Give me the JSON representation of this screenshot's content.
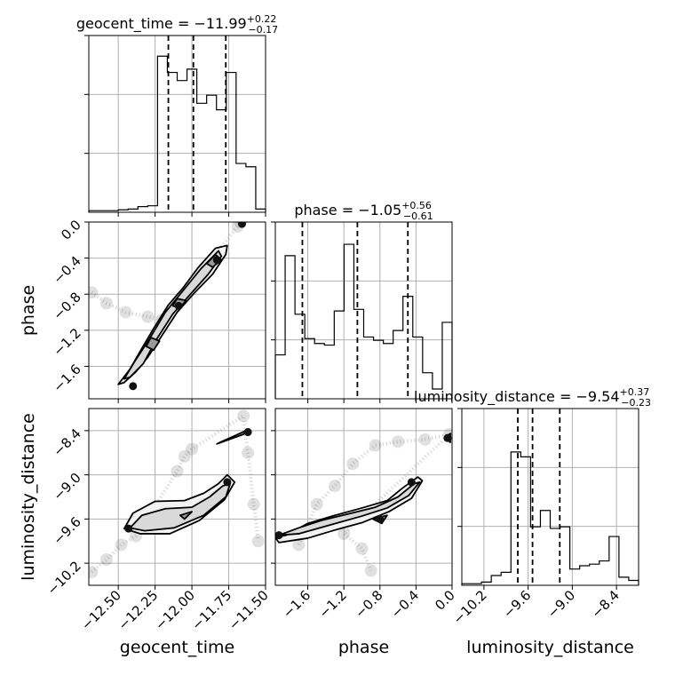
{
  "chart_data": {
    "type": "corner",
    "parameters": [
      {
        "name": "geocent_time",
        "xlabel": "geocent_time",
        "ylabel": "",
        "title": {
          "prefix": "geocent_time = ",
          "median": "−11.99",
          "plus": "+0.22",
          "minus": "−0.17"
        },
        "range": [
          -12.7,
          -11.5
        ],
        "ticks": [
          -12.5,
          -12.25,
          -12.0,
          -11.75,
          -11.5
        ],
        "tick_labels": [
          "−12.50",
          "−12.25",
          "−12.00",
          "−11.75",
          "−11.50"
        ],
        "quantiles": [
          -12.16,
          -11.99,
          -11.77
        ],
        "hist_max": 1.0,
        "hist": [
          0.01,
          0.01,
          0.01,
          0.015,
          0.02,
          0.035,
          0.04,
          0.96,
          0.86,
          0.81,
          0.88,
          0.67,
          0.72,
          0.63,
          0.86,
          0.3,
          0.28,
          0.02
        ]
      },
      {
        "name": "phase",
        "xlabel": "phase",
        "ylabel": "phase",
        "title": {
          "prefix": "phase = ",
          "median": "−1.05",
          "plus": "+0.56",
          "minus": "−0.61"
        },
        "range": [
          -1.96,
          0.0
        ],
        "ticks": [
          -1.6,
          -1.2,
          -0.8,
          -0.4,
          0.0
        ],
        "tick_labels": [
          "−1.6",
          "−1.2",
          "−0.8",
          "−0.4",
          "0.0"
        ],
        "quantiles": [
          -1.66,
          -1.05,
          -0.49
        ],
        "hist_max": 1.0,
        "hist": [
          0.27,
          0.88,
          0.52,
          0.37,
          0.34,
          0.33,
          0.54,
          0.95,
          0.55,
          0.38,
          0.36,
          0.34,
          0.42,
          0.63,
          0.38,
          0.16,
          0.06,
          0.47
        ]
      },
      {
        "name": "luminosity_distance",
        "xlabel": "luminosity_distance",
        "ylabel": "luminosity_distance",
        "title": {
          "prefix": "luminosity_distance = ",
          "median": "−9.54",
          "plus": "+0.37",
          "minus": "−0.23"
        },
        "range": [
          -10.5,
          -8.1
        ],
        "ticks": [
          -10.2,
          -9.6,
          -9.0,
          -8.4
        ],
        "tick_labels": [
          "−10.2",
          "−9.6",
          "−9.0",
          "−8.4"
        ],
        "quantiles": [
          -9.74,
          -9.54,
          -9.17
        ],
        "hist_max": 1.0,
        "hist": [
          0.01,
          0.01,
          0.02,
          0.06,
          0.08,
          0.82,
          0.79,
          0.36,
          0.46,
          0.35,
          0.36,
          0.1,
          0.12,
          0.13,
          0.15,
          0.3,
          0.05,
          0.03
        ]
      }
    ],
    "scatter": [
      {
        "x": "geocent_time",
        "y": "phase",
        "contours": [
          [
            [
              -12.46,
              -1.78
            ],
            [
              -12.38,
              -1.66
            ],
            [
              -12.3,
              -1.5
            ],
            [
              -12.2,
              -1.25
            ],
            [
              -12.1,
              -1.0
            ],
            [
              -11.98,
              -0.78
            ],
            [
              -11.86,
              -0.58
            ],
            [
              -11.77,
              -0.36
            ],
            [
              -11.76,
              -0.26
            ],
            [
              -11.84,
              -0.29
            ],
            [
              -11.96,
              -0.51
            ],
            [
              -12.06,
              -0.73
            ],
            [
              -12.16,
              -0.92
            ],
            [
              -12.26,
              -1.18
            ],
            [
              -12.35,
              -1.43
            ],
            [
              -12.42,
              -1.63
            ],
            [
              -12.5,
              -1.8
            ]
          ],
          [
            [
              -12.42,
              -1.72
            ],
            [
              -12.33,
              -1.57
            ],
            [
              -12.24,
              -1.3
            ],
            [
              -12.13,
              -1.02
            ],
            [
              -12.01,
              -0.8
            ],
            [
              -11.89,
              -0.58
            ],
            [
              -11.8,
              -0.38
            ],
            [
              -11.82,
              -0.32
            ],
            [
              -11.94,
              -0.52
            ],
            [
              -12.06,
              -0.76
            ],
            [
              -12.18,
              -1.0
            ],
            [
              -12.29,
              -1.3
            ],
            [
              -12.39,
              -1.55
            ],
            [
              -12.46,
              -1.74
            ]
          ],
          [
            [
              -11.86,
              -0.5
            ],
            [
              -11.8,
              -0.42
            ],
            [
              -11.84,
              -0.36
            ],
            [
              -11.9,
              -0.46
            ]
          ],
          [
            [
              -12.08,
              -0.95
            ],
            [
              -12.04,
              -0.87
            ],
            [
              -12.1,
              -0.85
            ],
            [
              -12.13,
              -0.93
            ]
          ],
          [
            [
              -12.26,
              -1.42
            ],
            [
              -12.22,
              -1.32
            ],
            [
              -12.28,
              -1.28
            ],
            [
              -12.31,
              -1.38
            ]
          ]
        ],
        "blobs": [
          [
            -12.4,
            -1.82
          ],
          [
            -11.83,
            -0.42
          ],
          [
            -11.66,
            -0.02
          ],
          [
            -12.09,
            -0.93
          ]
        ],
        "cloud": [
          [
            -12.68,
            -0.78
          ],
          [
            -12.58,
            -0.9
          ],
          [
            -12.45,
            -1.0
          ],
          [
            -12.3,
            -1.05
          ],
          [
            -12.2,
            -1.08
          ],
          [
            -11.69,
            -0.05
          ],
          [
            -11.67,
            -0.0
          ]
        ]
      },
      {
        "x": "geocent_time",
        "y": "luminosity_distance",
        "contours": [
          [
            [
              -12.46,
              -9.73
            ],
            [
              -12.4,
              -9.52
            ],
            [
              -12.25,
              -9.36
            ],
            [
              -12.05,
              -9.35
            ],
            [
              -11.92,
              -9.25
            ],
            [
              -11.82,
              -9.12
            ],
            [
              -11.76,
              -9.0
            ],
            [
              -11.71,
              -9.1
            ],
            [
              -11.78,
              -9.34
            ],
            [
              -11.95,
              -9.62
            ],
            [
              -12.15,
              -9.8
            ],
            [
              -12.35,
              -9.8
            ]
          ],
          [
            [
              -12.42,
              -9.72
            ],
            [
              -12.34,
              -9.55
            ],
            [
              -12.18,
              -9.46
            ],
            [
              -12.0,
              -9.44
            ],
            [
              -11.88,
              -9.3
            ],
            [
              -11.79,
              -9.15
            ],
            [
              -11.74,
              -9.12
            ],
            [
              -11.77,
              -9.3
            ],
            [
              -11.92,
              -9.55
            ],
            [
              -12.12,
              -9.72
            ],
            [
              -12.32,
              -9.76
            ]
          ],
          [
            [
              -11.83,
              -8.58
            ],
            [
              -11.65,
              -8.45
            ],
            [
              -11.61,
              -8.38
            ],
            [
              -11.8,
              -8.55
            ]
          ],
          [
            [
              -12.05,
              -9.6
            ],
            [
              -12.0,
              -9.5
            ],
            [
              -12.08,
              -9.55
            ]
          ]
        ],
        "blobs": [
          [
            -12.43,
            -9.73
          ],
          [
            -11.76,
            -9.1
          ],
          [
            -11.62,
            -8.42
          ]
        ],
        "cloud": [
          [
            -12.68,
            -10.32
          ],
          [
            -12.58,
            -10.15
          ],
          [
            -12.48,
            -9.95
          ],
          [
            -12.38,
            -9.83
          ],
          [
            -12.1,
            -8.95
          ],
          [
            -12.05,
            -8.75
          ],
          [
            -12.0,
            -8.65
          ],
          [
            -11.65,
            -8.2
          ],
          [
            -11.62,
            -8.7
          ],
          [
            -11.58,
            -9.4
          ],
          [
            -11.55,
            -9.9
          ]
        ]
      },
      {
        "x": "phase",
        "y": "luminosity_distance",
        "contours": [
          [
            [
              -1.96,
              -9.85
            ],
            [
              -1.84,
              -9.82
            ],
            [
              -1.6,
              -9.66
            ],
            [
              -1.3,
              -9.55
            ],
            [
              -1.0,
              -9.45
            ],
            [
              -0.72,
              -9.35
            ],
            [
              -0.55,
              -9.18
            ],
            [
              -0.38,
              -9.03
            ],
            [
              -0.33,
              -9.08
            ],
            [
              -0.45,
              -9.32
            ],
            [
              -0.7,
              -9.5
            ],
            [
              -1.0,
              -9.65
            ],
            [
              -1.3,
              -9.75
            ],
            [
              -1.6,
              -9.86
            ],
            [
              -1.92,
              -9.92
            ]
          ],
          [
            [
              -1.92,
              -9.82
            ],
            [
              -1.7,
              -9.72
            ],
            [
              -1.45,
              -9.62
            ],
            [
              -1.15,
              -9.53
            ],
            [
              -0.85,
              -9.44
            ],
            [
              -0.6,
              -9.3
            ],
            [
              -0.42,
              -9.12
            ],
            [
              -0.36,
              -9.1
            ],
            [
              -0.48,
              -9.28
            ],
            [
              -0.72,
              -9.45
            ],
            [
              -1.0,
              -9.56
            ],
            [
              -1.35,
              -9.68
            ],
            [
              -1.7,
              -9.8
            ]
          ],
          [
            [
              -0.88,
              -9.6
            ],
            [
              -0.72,
              -9.55
            ],
            [
              -0.78,
              -9.66
            ]
          ],
          [
            [
              -0.07,
              -8.5
            ],
            [
              -0.02,
              -8.44
            ],
            [
              -0.02,
              -8.56
            ]
          ]
        ],
        "blobs": [
          [
            -1.92,
            -9.82
          ],
          [
            -0.45,
            -9.1
          ],
          [
            -0.05,
            -8.5
          ],
          [
            -0.8,
            -9.6
          ]
        ],
        "cloud": [
          [
            -1.7,
            -9.95
          ],
          [
            -1.5,
            -9.4
          ],
          [
            -1.3,
            -9.15
          ],
          [
            -1.1,
            -8.85
          ],
          [
            -0.85,
            -8.6
          ],
          [
            -0.6,
            -8.55
          ],
          [
            -0.3,
            -8.52
          ],
          [
            -0.03,
            -8.45
          ],
          [
            -1.2,
            -9.8
          ],
          [
            -1.0,
            -10.0
          ],
          [
            -0.9,
            -10.3
          ]
        ]
      }
    ]
  }
}
